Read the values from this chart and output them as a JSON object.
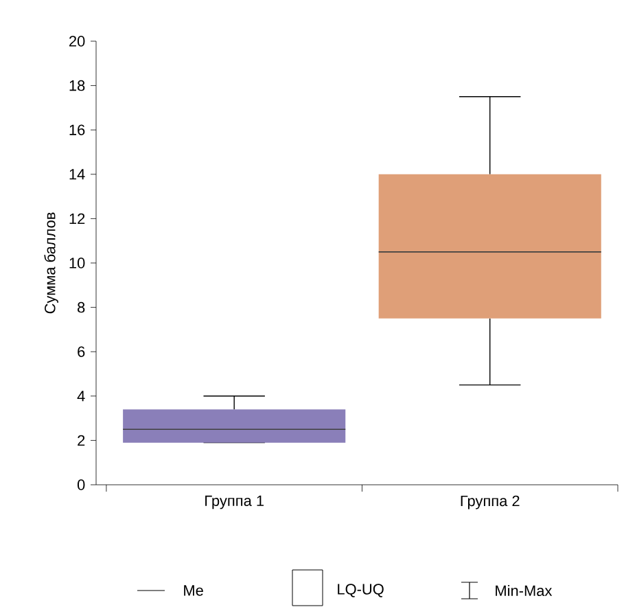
{
  "chart_data": {
    "type": "box",
    "ylabel": "Сумма баллов",
    "categories": [
      "Группа 1",
      "Группа 2"
    ],
    "colors": [
      "#8a7fb9",
      "#df9f78"
    ],
    "boxes": [
      {
        "low": 1.9,
        "q1": 1.9,
        "median": 2.5,
        "q3": 3.4,
        "high": 4
      },
      {
        "low": 4.5,
        "q1": 7.5,
        "median": 10.5,
        "q3": 14,
        "high": 17.5
      }
    ],
    "ylim": [
      0,
      20
    ],
    "yticks": [
      0,
      2,
      4,
      6,
      8,
      10,
      12,
      14,
      16,
      18,
      20
    ],
    "annotations": [
      "Me",
      "LQ-UQ",
      "Min-Max"
    ],
    "grid": false
  }
}
